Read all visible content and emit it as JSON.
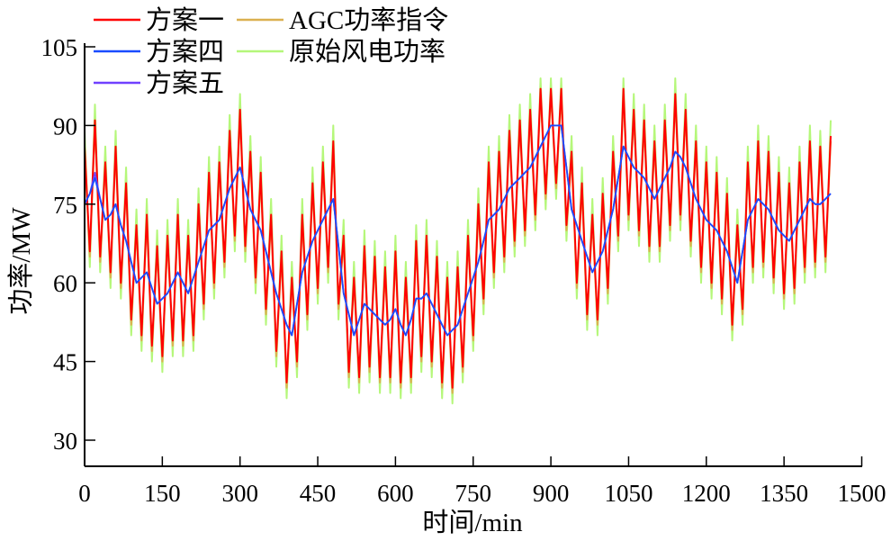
{
  "chart_data": {
    "type": "line",
    "title": "",
    "xlabel": "时间/min",
    "ylabel": "功率/MW",
    "xlim": [
      0,
      1500
    ],
    "ylim": [
      25,
      107
    ],
    "xticks": [
      0,
      150,
      300,
      450,
      600,
      750,
      900,
      1050,
      1200,
      1350,
      1500
    ],
    "yticks": [
      30,
      45,
      60,
      75,
      90,
      105
    ],
    "grid": false,
    "legend_position": "top",
    "x": [
      0,
      10,
      20,
      30,
      40,
      50,
      60,
      70,
      80,
      90,
      100,
      110,
      120,
      130,
      140,
      150,
      160,
      170,
      180,
      190,
      200,
      210,
      220,
      230,
      240,
      250,
      260,
      270,
      280,
      290,
      300,
      310,
      320,
      330,
      340,
      350,
      360,
      370,
      380,
      390,
      400,
      410,
      420,
      430,
      440,
      450,
      460,
      470,
      480,
      490,
      500,
      510,
      520,
      530,
      540,
      550,
      560,
      570,
      580,
      590,
      600,
      610,
      620,
      630,
      640,
      650,
      660,
      670,
      680,
      690,
      700,
      710,
      720,
      730,
      740,
      750,
      760,
      770,
      780,
      790,
      800,
      810,
      820,
      830,
      840,
      850,
      860,
      870,
      880,
      890,
      900,
      910,
      920,
      930,
      940,
      950,
      960,
      970,
      980,
      990,
      1000,
      1010,
      1020,
      1030,
      1040,
      1050,
      1060,
      1070,
      1080,
      1090,
      1100,
      1110,
      1120,
      1130,
      1140,
      1150,
      1160,
      1170,
      1180,
      1190,
      1200,
      1210,
      1220,
      1230,
      1240,
      1250,
      1260,
      1270,
      1280,
      1290,
      1300,
      1310,
      1320,
      1330,
      1340,
      1350,
      1360,
      1370,
      1380,
      1390,
      1400,
      1410,
      1420,
      1430,
      1440
    ],
    "series": [
      {
        "name": "原始风电功率",
        "color": "#b5f77a",
        "values": [
          89,
          63,
          94,
          62,
          86,
          59,
          89,
          57,
          82,
          50,
          74,
          47,
          76,
          45,
          70,
          43,
          72,
          46,
          76,
          46,
          72,
          47,
          78,
          53,
          84,
          57,
          86,
          61,
          92,
          66,
          96,
          64,
          88,
          58,
          84,
          52,
          76,
          44,
          69,
          38,
          64,
          42,
          76,
          51,
          82,
          56,
          86,
          60,
          90,
          53,
          72,
          40,
          64,
          39,
          70,
          41,
          68,
          39,
          66,
          39,
          69,
          38,
          64,
          39,
          71,
          43,
          72,
          42,
          68,
          38,
          64,
          37,
          66,
          41,
          72,
          47,
          78,
          54,
          86,
          59,
          88,
          62,
          92,
          65,
          94,
          67,
          96,
          70,
          99,
          74,
          99,
          76,
          99,
          68,
          88,
          57,
          82,
          51,
          76,
          50,
          80,
          56,
          88,
          66,
          99,
          70,
          96,
          67,
          94,
          64,
          90,
          64,
          94,
          68,
          99,
          70,
          96,
          65,
          90,
          60,
          86,
          57,
          84,
          54,
          80,
          49,
          74,
          52,
          86,
          60,
          90,
          61,
          88,
          58,
          84,
          55,
          82,
          56,
          86,
          60,
          90,
          61,
          89,
          62,
          91
        ]
      },
      {
        "name": "AGC功率指令",
        "color": "#dbb050",
        "values": [
          85,
          65,
          90,
          64,
          82,
          61,
          85,
          59,
          78,
          52,
          70,
          49,
          72,
          47,
          66,
          45,
          68,
          48,
          72,
          48,
          68,
          49,
          74,
          55,
          80,
          59,
          82,
          63,
          88,
          68,
          92,
          66,
          84,
          60,
          80,
          54,
          72,
          46,
          65,
          40,
          60,
          44,
          72,
          53,
          78,
          58,
          82,
          62,
          86,
          55,
          68,
          42,
          60,
          41,
          66,
          43,
          64,
          41,
          62,
          41,
          65,
          40,
          60,
          41,
          67,
          45,
          68,
          44,
          64,
          40,
          60,
          39,
          62,
          43,
          68,
          49,
          74,
          56,
          82,
          61,
          84,
          64,
          88,
          67,
          90,
          69,
          92,
          72,
          96,
          76,
          96,
          78,
          96,
          70,
          84,
          59,
          78,
          53,
          72,
          52,
          76,
          58,
          84,
          68,
          96,
          72,
          92,
          69,
          90,
          66,
          86,
          66,
          90,
          70,
          95,
          72,
          92,
          67,
          86,
          62,
          82,
          59,
          80,
          56,
          76,
          51,
          70,
          54,
          82,
          62,
          86,
          63,
          84,
          60,
          80,
          57,
          78,
          58,
          82,
          62,
          86,
          63,
          85,
          64,
          87
        ]
      },
      {
        "name": "方案一",
        "color": "#ff0000",
        "values": [
          86,
          66,
          91,
          65,
          83,
          62,
          86,
          60,
          79,
          53,
          71,
          50,
          73,
          48,
          67,
          46,
          69,
          49,
          73,
          49,
          69,
          50,
          75,
          56,
          81,
          60,
          83,
          64,
          89,
          69,
          93,
          67,
          85,
          61,
          81,
          55,
          73,
          47,
          66,
          41,
          61,
          45,
          73,
          54,
          79,
          59,
          83,
          63,
          87,
          56,
          69,
          43,
          61,
          42,
          67,
          44,
          65,
          42,
          63,
          42,
          66,
          41,
          61,
          42,
          68,
          46,
          69,
          45,
          65,
          41,
          61,
          40,
          63,
          44,
          69,
          50,
          75,
          57,
          83,
          62,
          85,
          65,
          89,
          68,
          91,
          70,
          93,
          73,
          97,
          77,
          97,
          79,
          97,
          71,
          85,
          60,
          79,
          54,
          73,
          53,
          77,
          59,
          85,
          69,
          97,
          73,
          93,
          70,
          91,
          67,
          87,
          67,
          91,
          71,
          96,
          73,
          93,
          68,
          87,
          63,
          83,
          60,
          81,
          57,
          77,
          52,
          71,
          55,
          83,
          63,
          87,
          64,
          85,
          61,
          81,
          58,
          79,
          59,
          83,
          63,
          87,
          64,
          86,
          65,
          88
        ]
      },
      {
        "name": "方案五",
        "color": "#7040ff",
        "values": [
          75,
          77,
          81,
          76,
          72,
          73,
          75,
          71,
          68,
          64,
          60,
          61,
          62,
          59,
          56,
          57,
          58,
          60,
          62,
          60,
          58,
          61,
          64,
          67,
          70,
          71,
          72,
          75,
          78,
          80,
          82,
          78,
          74,
          72,
          70,
          66,
          62,
          58,
          55,
          52,
          50,
          56,
          62,
          65,
          68,
          70,
          72,
          74,
          76,
          67,
          58,
          54,
          50,
          53,
          56,
          55,
          54,
          53,
          52,
          53,
          55,
          52,
          50,
          53,
          57,
          57,
          58,
          56,
          54,
          52,
          50,
          51,
          52,
          55,
          58,
          61,
          64,
          68,
          72,
          73,
          74,
          76,
          78,
          79,
          80,
          81,
          82,
          84,
          86,
          88,
          90,
          90,
          90,
          82,
          74,
          71,
          68,
          65,
          62,
          64,
          66,
          70,
          74,
          80,
          86,
          84,
          82,
          81,
          80,
          78,
          76,
          78,
          80,
          82,
          85,
          84,
          82,
          79,
          76,
          74,
          72,
          71,
          70,
          68,
          66,
          63,
          60,
          66,
          72,
          74,
          76,
          75,
          74,
          72,
          70,
          69,
          68,
          70,
          72,
          74,
          76,
          75,
          75,
          76,
          77
        ]
      },
      {
        "name": "方案四",
        "color": "#1a4cff",
        "values": [
          75,
          77,
          80,
          76,
          72,
          73,
          75,
          71,
          68,
          64,
          60,
          61,
          62,
          59,
          56,
          57,
          58,
          60,
          62,
          60,
          58,
          61,
          64,
          67,
          70,
          71,
          72,
          75,
          78,
          80,
          82,
          78,
          74,
          72,
          70,
          66,
          62,
          58,
          55,
          52,
          50,
          56,
          62,
          65,
          68,
          70,
          72,
          74,
          76,
          67,
          58,
          54,
          50,
          53,
          56,
          55,
          54,
          53,
          52,
          53,
          55,
          52,
          50,
          53,
          57,
          57,
          58,
          56,
          54,
          52,
          50,
          51,
          52,
          55,
          58,
          61,
          64,
          68,
          72,
          73,
          74,
          76,
          78,
          79,
          80,
          81,
          82,
          84,
          86,
          88,
          90,
          90,
          90,
          82,
          74,
          71,
          68,
          65,
          62,
          64,
          66,
          70,
          74,
          80,
          86,
          84,
          82,
          81,
          80,
          78,
          76,
          78,
          80,
          82,
          85,
          84,
          82,
          79,
          76,
          74,
          72,
          71,
          70,
          68,
          66,
          63,
          60,
          66,
          72,
          74,
          76,
          75,
          74,
          72,
          70,
          69,
          68,
          70,
          72,
          74,
          76,
          75,
          75,
          76,
          77
        ]
      }
    ],
    "legend": [
      {
        "label": "方案一",
        "color": "#ff0000"
      },
      {
        "label": "方案四",
        "color": "#1a4cff"
      },
      {
        "label": "方案五",
        "color": "#7040ff"
      },
      {
        "label": "AGC功率指令",
        "color": "#dbb050"
      },
      {
        "label": "原始风电功率",
        "color": "#b5f77a"
      }
    ]
  }
}
